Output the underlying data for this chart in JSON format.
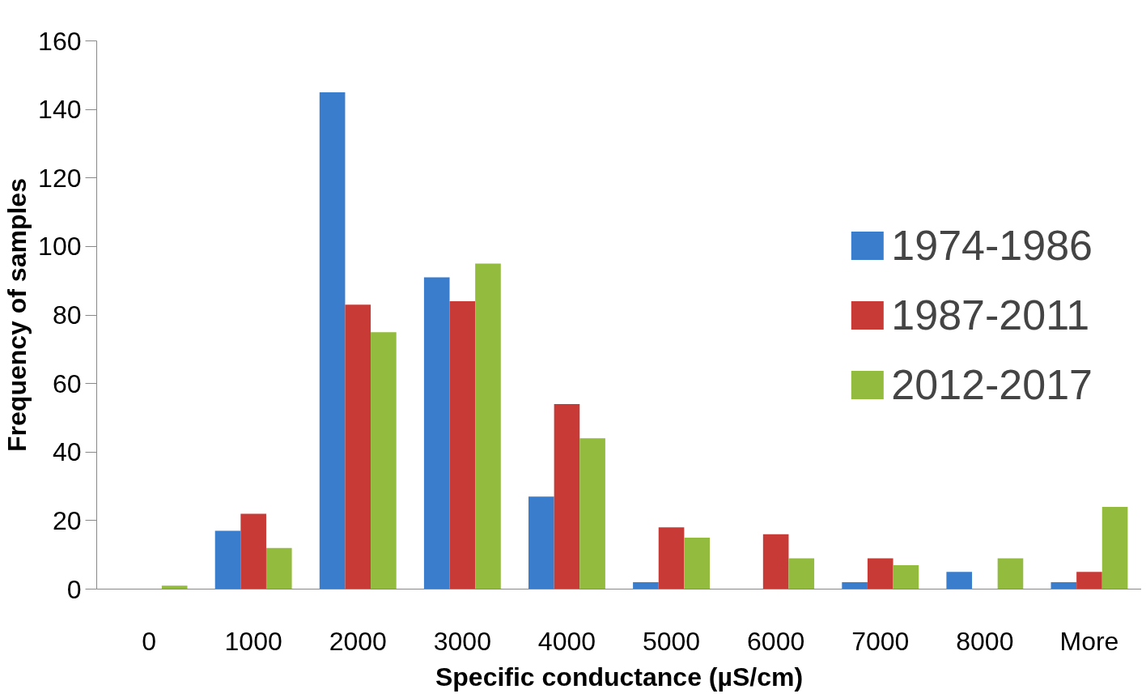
{
  "chart_data": {
    "type": "bar",
    "xlabel": "Specific conductance (µS/cm)",
    "ylabel": "Frequency of samples",
    "categories": [
      "0",
      "1000",
      "2000",
      "3000",
      "4000",
      "5000",
      "6000",
      "7000",
      "8000",
      "More"
    ],
    "series": [
      {
        "name": "1974-1986",
        "color": "#3a7dcc",
        "values": [
          0,
          17,
          145,
          91,
          27,
          2,
          0,
          2,
          5,
          2
        ]
      },
      {
        "name": "1987-2011",
        "color": "#c83a36",
        "values": [
          0,
          22,
          83,
          84,
          54,
          18,
          16,
          9,
          0,
          5
        ]
      },
      {
        "name": "2012-2017",
        "color": "#93bb3e",
        "values": [
          1,
          12,
          75,
          95,
          44,
          15,
          9,
          7,
          9,
          24
        ]
      }
    ],
    "ylim": [
      0,
      160
    ],
    "yticks": [
      0,
      20,
      40,
      60,
      80,
      100,
      120,
      140,
      160
    ],
    "grid": false,
    "legend": "right"
  }
}
